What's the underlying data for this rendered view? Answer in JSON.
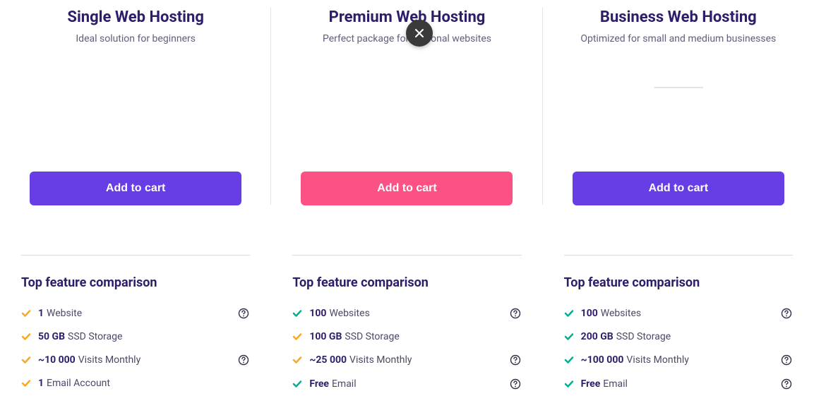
{
  "colors": {
    "purple": "#673de6",
    "pink": "#fc5185",
    "check_orange": "#f9a826",
    "check_green": "#00b090",
    "heading": "#2f1c6a",
    "text": "#4a4a68",
    "help_stroke": "#2f2f4a"
  },
  "section_heading": "Top feature comparison",
  "add_to_cart_label": "Add to cart",
  "plans": [
    {
      "title": "Single Web Hosting",
      "subtitle": "Ideal solution for beginners",
      "button_variant": "purple",
      "show_underline": false,
      "features": [
        {
          "bold": "1",
          "label": "Website",
          "check_color": "orange",
          "help": true
        },
        {
          "bold": "50 GB",
          "label": "SSD Storage",
          "check_color": "orange",
          "help": false
        },
        {
          "bold": "~10 000",
          "label": "Visits Monthly",
          "check_color": "orange",
          "help": true
        },
        {
          "bold": "1",
          "label": "Email Account",
          "check_color": "orange",
          "help": false
        }
      ]
    },
    {
      "title": "Premium Web Hosting",
      "subtitle": "Perfect package for personal websites",
      "button_variant": "pink",
      "show_underline": false,
      "features": [
        {
          "bold": "100",
          "label": "Websites",
          "check_color": "green",
          "help": true
        },
        {
          "bold": "100 GB",
          "label": "SSD Storage",
          "check_color": "orange",
          "help": false
        },
        {
          "bold": "~25 000",
          "label": "Visits Monthly",
          "check_color": "orange",
          "help": true
        },
        {
          "bold": "Free",
          "label": "Email",
          "check_color": "green",
          "help": true
        }
      ]
    },
    {
      "title": "Business Web Hosting",
      "subtitle": "Optimized for small and medium businesses",
      "button_variant": "purple",
      "show_underline": true,
      "features": [
        {
          "bold": "100",
          "label": "Websites",
          "check_color": "green",
          "help": true
        },
        {
          "bold": "200 GB",
          "label": "SSD Storage",
          "check_color": "green",
          "help": false
        },
        {
          "bold": "~100 000",
          "label": "Visits Monthly",
          "check_color": "green",
          "help": true
        },
        {
          "bold": "Free",
          "label": "Email",
          "check_color": "green",
          "help": true
        }
      ]
    }
  ]
}
